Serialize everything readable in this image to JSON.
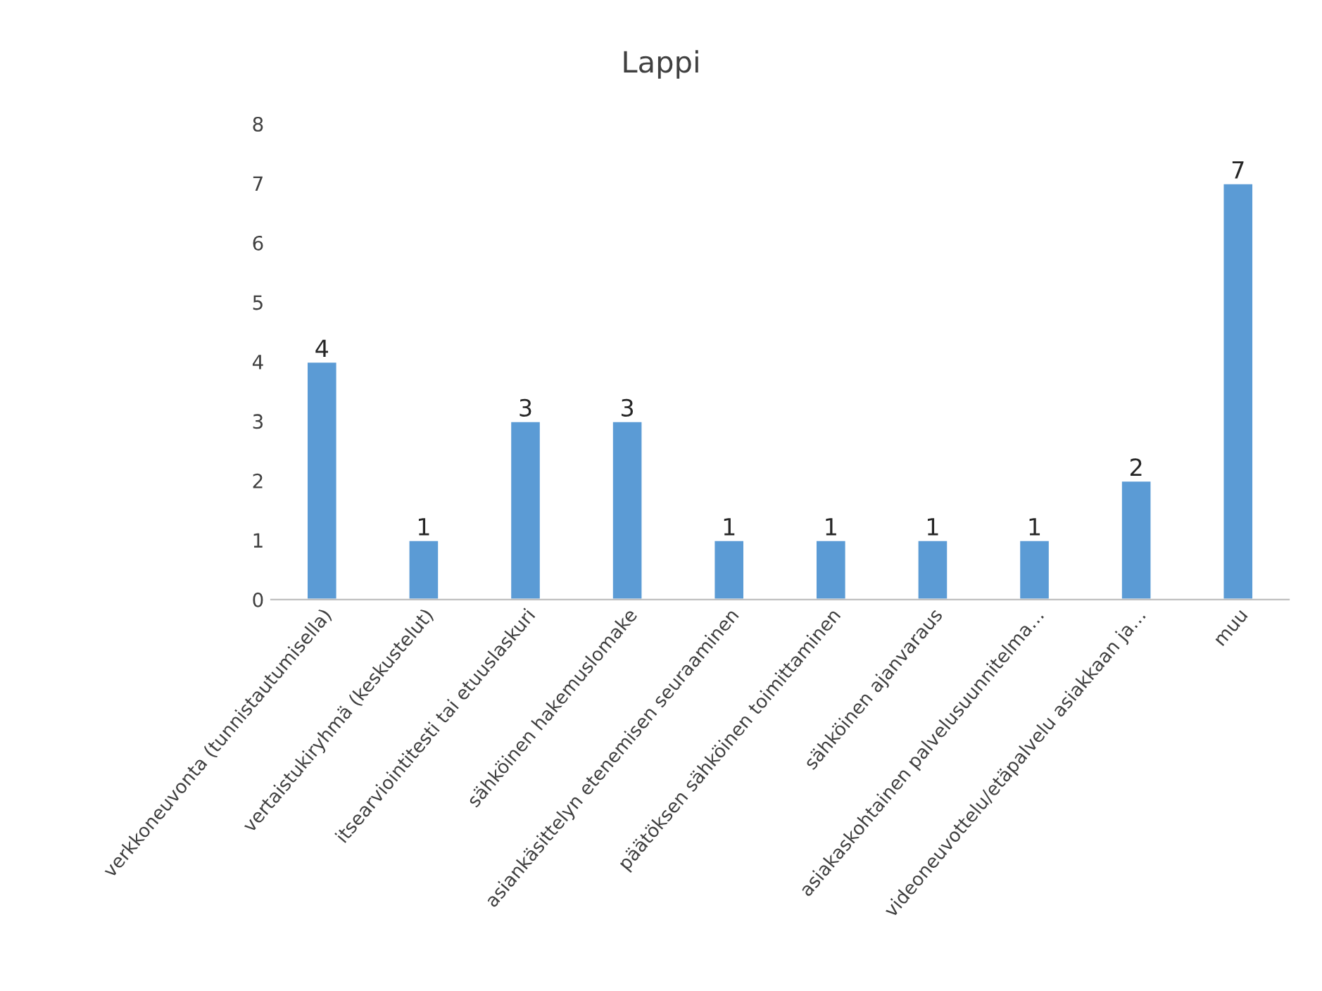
{
  "chart_data": {
    "type": "bar",
    "title": "Lappi",
    "categories": [
      "verkkoneuvonta (tunnistautumisella)",
      "vertaistukiryhmä (keskustelut)",
      "itsearviointitesti tai etuuslaskuri",
      "sähköinen hakemuslomake",
      "asiankäsittelyn etenemisen seuraaminen",
      "päätöksen sähköinen toimittaminen",
      "sähköinen ajanvaraus",
      "asiakaskohtainen palvelusuunnitelma…",
      "videoneuvottelu/etäpalvelu asiakkaan ja…",
      "muu"
    ],
    "values": [
      4,
      1,
      3,
      3,
      1,
      1,
      1,
      1,
      2,
      7
    ],
    "color": "#5b9bd5",
    "ylim": [
      0,
      8
    ],
    "yticks": [
      0,
      1,
      2,
      3,
      4,
      5,
      6,
      7,
      8
    ],
    "grid": false,
    "data_labels": true
  }
}
